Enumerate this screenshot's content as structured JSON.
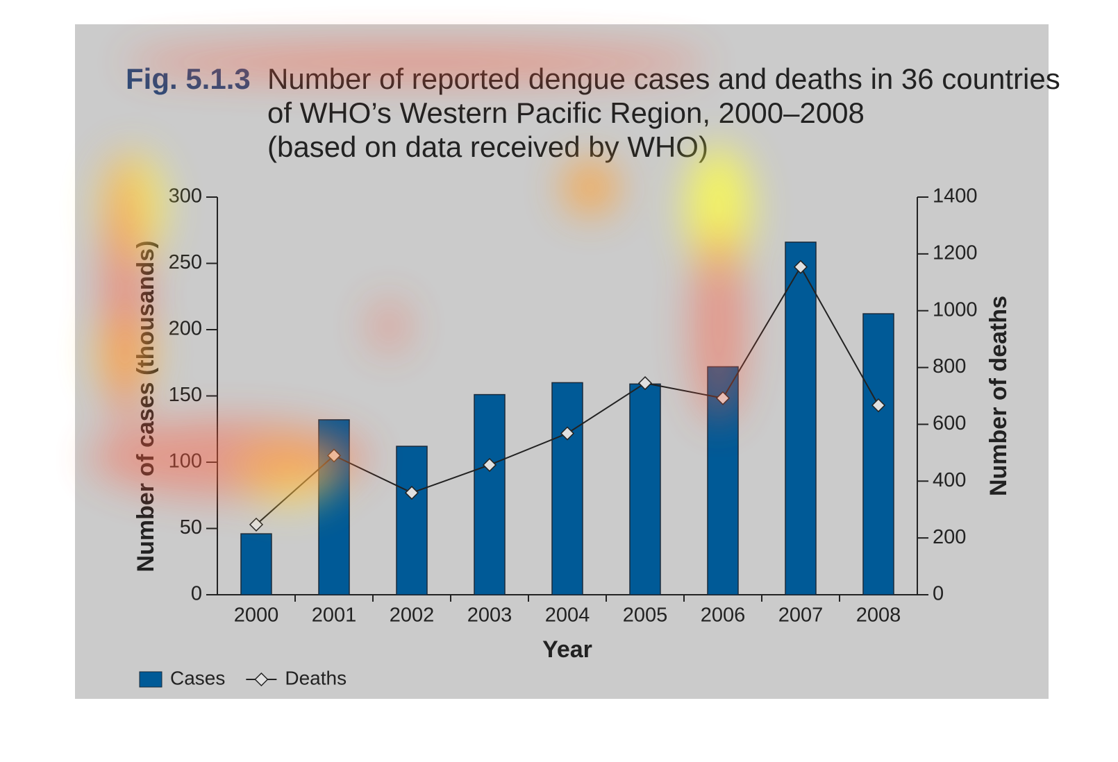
{
  "chart_data": {
    "type": "bar_line",
    "figure_label": "Fig. 5.1.3",
    "title_lines": [
      "Number of reported dengue cases and deaths in 36 countries",
      "of WHO’s Western Pacific Region, 2000–2008",
      "(based on data received by WHO)"
    ],
    "x_label": "Year",
    "y_label": "Number of cases (thousands)",
    "y2_label": "Number of deaths",
    "categories": [
      "2000",
      "2001",
      "2002",
      "2003",
      "2004",
      "2005",
      "2006",
      "2007",
      "2008"
    ],
    "series": [
      {
        "name": "Cases",
        "color": "#005a97",
        "type": "bar",
        "values": [
          46,
          132,
          112,
          151,
          160,
          159,
          172,
          266,
          212
        ]
      },
      {
        "name": "Deaths",
        "color": "#222222",
        "type": "line",
        "axis": "y2",
        "values": [
          247,
          490,
          359,
          457,
          568,
          745,
          692,
          1154,
          667
        ]
      }
    ],
    "ylim": [
      0,
      300
    ],
    "yticks": [
      0,
      50,
      100,
      150,
      200,
      250,
      300
    ],
    "y2lim": [
      0,
      1400
    ],
    "y2ticks": [
      0,
      200,
      400,
      600,
      800,
      1000,
      1200,
      1400
    ],
    "legend": "bottom-left"
  }
}
